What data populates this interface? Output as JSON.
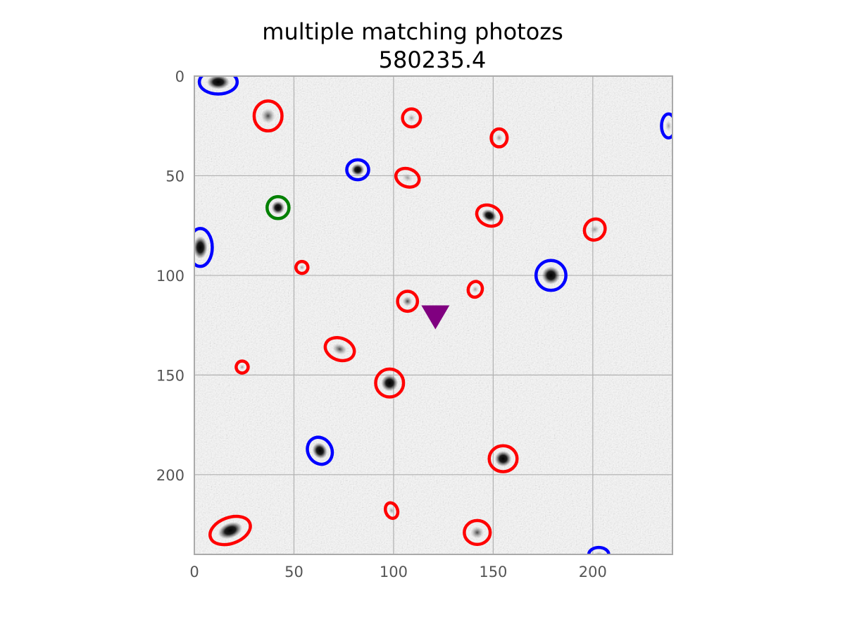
{
  "chart_data": {
    "type": "image",
    "title": "multiple matching photozs",
    "subtitle": "580235.4",
    "xlabel": "",
    "ylabel": "",
    "xlim": [
      0,
      240
    ],
    "ylim": [
      240,
      0
    ],
    "grid": true,
    "x_ticks": [
      "0",
      "50",
      "100",
      "150",
      "200"
    ],
    "y_ticks": [
      "0",
      "50",
      "100",
      "150",
      "200"
    ],
    "colors": {
      "red": "#ff0000",
      "blue": "#0000ff",
      "green": "#008000",
      "marker": "#800080",
      "grid": "#b0b0b0",
      "axes": "#aaaaaa"
    },
    "sources": [
      {
        "color": "red",
        "x": 37,
        "y": 20,
        "rx": 7,
        "ry": 7.5,
        "angle": 0,
        "blob": "gray"
      },
      {
        "color": "red",
        "x": 109,
        "y": 21,
        "rx": 4.5,
        "ry": 4.5,
        "angle": 0,
        "blob": "faint"
      },
      {
        "color": "red",
        "x": 153,
        "y": 31,
        "rx": 4,
        "ry": 4.5,
        "angle": 0,
        "blob": "faint"
      },
      {
        "color": "red",
        "x": 107,
        "y": 51,
        "rx": 6,
        "ry": 4.5,
        "angle": 20,
        "blob": "faint"
      },
      {
        "color": "red",
        "x": 148,
        "y": 70,
        "rx": 6.5,
        "ry": 5,
        "angle": 25,
        "blob": "dark"
      },
      {
        "color": "red",
        "x": 201,
        "y": 77,
        "rx": 5,
        "ry": 5.5,
        "angle": 40,
        "blob": "faint"
      },
      {
        "color": "red",
        "x": 54,
        "y": 96,
        "rx": 3,
        "ry": 3,
        "angle": 30,
        "blob": "faint"
      },
      {
        "color": "red",
        "x": 141,
        "y": 107,
        "rx": 3.5,
        "ry": 4,
        "angle": 20,
        "blob": "faint"
      },
      {
        "color": "red",
        "x": 107,
        "y": 113,
        "rx": 5,
        "ry": 5,
        "angle": 0,
        "blob": "gray"
      },
      {
        "color": "red",
        "x": 73,
        "y": 137,
        "rx": 7.5,
        "ry": 5.5,
        "angle": 20,
        "blob": "gray"
      },
      {
        "color": "red",
        "x": 24,
        "y": 146,
        "rx": 3,
        "ry": 3,
        "angle": 30,
        "blob": "faint"
      },
      {
        "color": "red",
        "x": 98,
        "y": 154,
        "rx": 7,
        "ry": 7,
        "angle": 0,
        "blob": "dark"
      },
      {
        "color": "red",
        "x": 155,
        "y": 192,
        "rx": 7,
        "ry": 6.5,
        "angle": 0,
        "blob": "dark"
      },
      {
        "color": "red",
        "x": 99,
        "y": 218,
        "rx": 3,
        "ry": 4,
        "angle": -20,
        "blob": "faint"
      },
      {
        "color": "red",
        "x": 142,
        "y": 229,
        "rx": 6.5,
        "ry": 6,
        "angle": 0,
        "blob": "gray"
      },
      {
        "color": "red",
        "x": 18,
        "y": 228,
        "rx": 10.5,
        "ry": 6.5,
        "angle": -20,
        "blob": "dark"
      },
      {
        "color": "blue",
        "x": 12,
        "y": 3,
        "rx": 9.5,
        "ry": 6,
        "angle": 0,
        "blob": "dark"
      },
      {
        "color": "blue",
        "x": 82,
        "y": 47,
        "rx": 5.5,
        "ry": 5,
        "angle": 0,
        "blob": "dark"
      },
      {
        "color": "blue",
        "x": 3,
        "y": 86,
        "rx": 6,
        "ry": 9.5,
        "angle": 0,
        "blob": "dark"
      },
      {
        "color": "blue",
        "x": 179,
        "y": 100,
        "rx": 7.5,
        "ry": 7.5,
        "angle": 0,
        "blob": "dark"
      },
      {
        "color": "blue",
        "x": 63,
        "y": 188,
        "rx": 6,
        "ry": 7,
        "angle": -30,
        "blob": "dark"
      },
      {
        "color": "blue",
        "x": 238,
        "y": 25,
        "rx": 3.5,
        "ry": 6,
        "angle": 0,
        "blob": "faint"
      },
      {
        "color": "blue",
        "x": 203,
        "y": 240,
        "rx": 5,
        "ry": 3.5,
        "angle": 0,
        "blob": "faint"
      },
      {
        "color": "green",
        "x": 42,
        "y": 66,
        "rx": 5.5,
        "ry": 5.5,
        "angle": 0,
        "blob": "dark"
      }
    ],
    "target_marker": {
      "shape": "triangle-down",
      "x": 121,
      "y": 120,
      "color": "marker"
    }
  }
}
